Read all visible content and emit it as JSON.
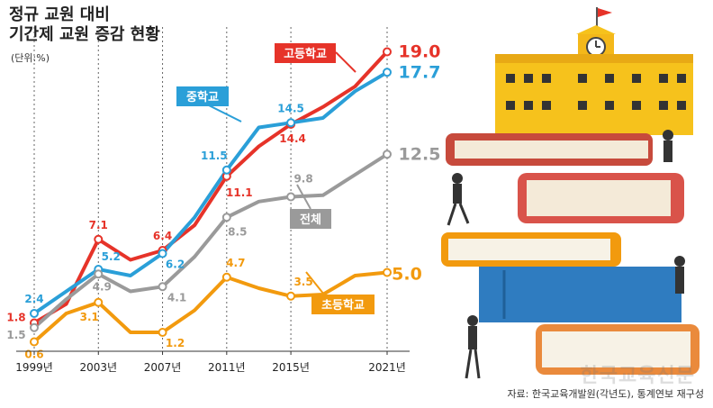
{
  "title_line1": "정규 교원 대비",
  "title_line2": "기간제 교원 증감 현황",
  "unit": "(단위:%)",
  "source": "자료: 한국교육개발원(각년도), 통계연보 재구성",
  "watermark": "한국교육신문",
  "chart_data": {
    "type": "line",
    "x": [
      1999,
      2001,
      2003,
      2005,
      2007,
      2009,
      2011,
      2013,
      2015,
      2017,
      2019,
      2021
    ],
    "x_ticks": [
      1999,
      2003,
      2007,
      2011,
      2015,
      2021
    ],
    "tick_labels": [
      "1999년",
      "2003년",
      "2007년",
      "2011년",
      "2015년",
      "2021년"
    ],
    "ylim": [
      0,
      20
    ],
    "grid": false,
    "series": [
      {
        "name": "고등학교",
        "color": "#e63329",
        "values": [
          1.8,
          3.0,
          7.1,
          5.8,
          6.4,
          8.0,
          11.1,
          13.0,
          14.4,
          15.5,
          16.8,
          19.0
        ],
        "labels": [
          {
            "x": 1999,
            "text": "1.8"
          },
          {
            "x": 2003,
            "text": "7.1"
          },
          {
            "x": 2007,
            "text": "6.4"
          },
          {
            "x": 2011,
            "text": "11.1"
          },
          {
            "x": 2015,
            "text": "14.4"
          },
          {
            "x": 2021,
            "text": "19.0"
          }
        ]
      },
      {
        "name": "중학교",
        "color": "#2a9fd8",
        "values": [
          2.4,
          3.8,
          5.2,
          4.8,
          6.2,
          8.5,
          11.5,
          14.2,
          14.5,
          14.8,
          16.5,
          17.7
        ],
        "labels": [
          {
            "x": 1999,
            "text": "2.4"
          },
          {
            "x": 2003,
            "text": "5.2"
          },
          {
            "x": 2007,
            "text": "6.2"
          },
          {
            "x": 2011,
            "text": "11.5"
          },
          {
            "x": 2015,
            "text": "14.5"
          },
          {
            "x": 2021,
            "text": "17.7"
          }
        ]
      },
      {
        "name": "전체",
        "color": "#9a9a9a",
        "values": [
          1.5,
          3.3,
          4.9,
          3.8,
          4.1,
          6.0,
          8.5,
          9.5,
          9.8,
          9.9,
          11.2,
          12.5
        ],
        "labels": [
          {
            "x": 1999,
            "text": "1.5"
          },
          {
            "x": 2003,
            "text": "4.9"
          },
          {
            "x": 2007,
            "text": "4.1"
          },
          {
            "x": 2011,
            "text": "8.5"
          },
          {
            "x": 2015,
            "text": "9.8"
          },
          {
            "x": 2021,
            "text": "12.5"
          }
        ]
      },
      {
        "name": "초등학교",
        "color": "#f29a0e",
        "values": [
          0.6,
          2.4,
          3.1,
          1.2,
          1.2,
          2.6,
          4.7,
          4.0,
          3.5,
          3.6,
          4.8,
          5.0
        ],
        "labels": [
          {
            "x": 1999,
            "text": "0.6"
          },
          {
            "x": 2003,
            "text": "3.1"
          },
          {
            "x": 2007,
            "text": "1.2"
          },
          {
            "x": 2011,
            "text": "4.7"
          },
          {
            "x": 2015,
            "text": "3.5"
          },
          {
            "x": 2021,
            "text": "5.0"
          }
        ]
      }
    ]
  }
}
